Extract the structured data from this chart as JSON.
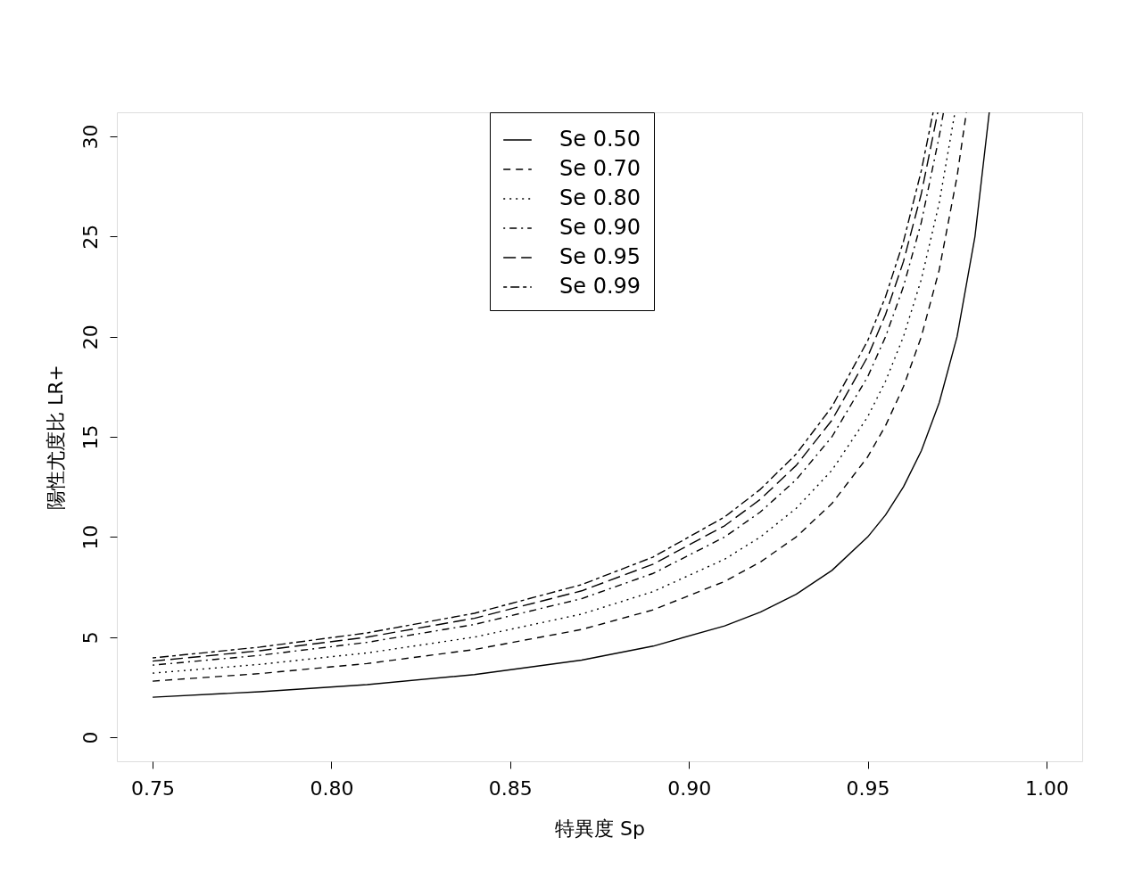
{
  "chart_data": {
    "type": "line",
    "xlabel": "特異度 Sp",
    "ylabel": "陽性尤度比 LR+",
    "xlim": [
      0.74,
      1.01
    ],
    "xticks": [
      {
        "value": 0.75,
        "label": "0.75"
      },
      {
        "value": 0.8,
        "label": "0.80"
      },
      {
        "value": 0.85,
        "label": "0.85"
      },
      {
        "value": 0.9,
        "label": "0.90"
      },
      {
        "value": 0.95,
        "label": "0.95"
      },
      {
        "value": 1.0,
        "label": "1.00"
      }
    ],
    "ylim": [
      -1.2,
      31.2
    ],
    "yticks": [
      0,
      5,
      10,
      15,
      20,
      25,
      30
    ],
    "grid": false,
    "legend": "top",
    "marker": "none",
    "series": [
      {
        "name": "Se 0.50",
        "color": "#000000",
        "line_style": "solid",
        "x": [
          0.75,
          0.78,
          0.81,
          0.84,
          0.87,
          0.89,
          0.91,
          0.92,
          0.93,
          0.94,
          0.95,
          0.955,
          0.96,
          0.965,
          0.97,
          0.975,
          0.98,
          0.984
        ],
        "values": [
          2,
          2.27,
          2.63,
          3.13,
          3.85,
          4.55,
          5.56,
          6.25,
          7.14,
          8.33,
          10,
          11.1,
          12.5,
          14.3,
          16.7,
          20,
          25,
          31.2
        ]
      },
      {
        "name": "Se 0.70",
        "color": "#000000",
        "line_style": "dashed",
        "x": [
          0.75,
          0.78,
          0.81,
          0.84,
          0.87,
          0.89,
          0.91,
          0.92,
          0.93,
          0.94,
          0.95,
          0.955,
          0.96,
          0.965,
          0.97,
          0.975,
          0.9776
        ],
        "values": [
          2.8,
          3.18,
          3.68,
          4.38,
          5.38,
          6.36,
          7.78,
          8.75,
          10,
          11.67,
          14,
          15.56,
          17.5,
          20,
          23.33,
          28,
          31.2
        ]
      },
      {
        "name": "Se 0.80",
        "color": "#000000",
        "line_style": "dotted",
        "x": [
          0.75,
          0.78,
          0.81,
          0.84,
          0.87,
          0.89,
          0.91,
          0.92,
          0.93,
          0.94,
          0.95,
          0.955,
          0.96,
          0.965,
          0.97,
          0.9744
        ],
        "values": [
          3.2,
          3.64,
          4.21,
          5,
          6.15,
          7.27,
          8.89,
          10,
          11.43,
          13.33,
          16,
          17.78,
          20,
          22.86,
          26.67,
          31.2
        ]
      },
      {
        "name": "Se 0.90",
        "color": "#000000",
        "line_style": "dashdot",
        "x": [
          0.75,
          0.78,
          0.81,
          0.84,
          0.87,
          0.89,
          0.91,
          0.92,
          0.93,
          0.94,
          0.95,
          0.955,
          0.96,
          0.965,
          0.97,
          0.9712
        ],
        "values": [
          3.6,
          4.09,
          4.74,
          5.63,
          6.92,
          8.18,
          10,
          11.25,
          12.86,
          15,
          18,
          20,
          22.5,
          25.71,
          30,
          31.2
        ]
      },
      {
        "name": "Se 0.95",
        "color": "#000000",
        "line_style": "longdash",
        "x": [
          0.75,
          0.78,
          0.81,
          0.84,
          0.87,
          0.89,
          0.91,
          0.92,
          0.93,
          0.94,
          0.95,
          0.955,
          0.96,
          0.965,
          0.9696
        ],
        "values": [
          3.8,
          4.32,
          5,
          5.94,
          7.31,
          8.64,
          10.56,
          11.88,
          13.57,
          15.83,
          19,
          21.11,
          23.75,
          27.14,
          31.2
        ]
      },
      {
        "name": "Se 0.99",
        "color": "#000000",
        "line_style": "twodash",
        "x": [
          0.75,
          0.78,
          0.81,
          0.84,
          0.87,
          0.89,
          0.91,
          0.92,
          0.93,
          0.94,
          0.95,
          0.955,
          0.96,
          0.965,
          0.9683
        ],
        "values": [
          3.96,
          4.5,
          5.21,
          6.19,
          7.62,
          9,
          11,
          12.38,
          14.14,
          16.5,
          19.8,
          22,
          24.75,
          28.29,
          31.2
        ]
      }
    ]
  }
}
